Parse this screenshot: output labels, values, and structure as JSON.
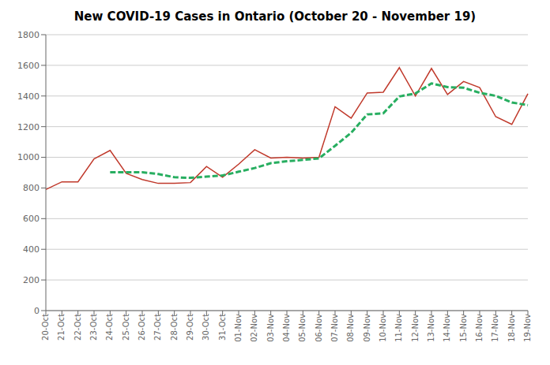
{
  "chart_data": {
    "type": "line",
    "title": "New COVID-19 Cases in Ontario (October 20 - November 19)",
    "categories": [
      "20-Oct",
      "21-Oct",
      "22-Oct",
      "23-Oct",
      "24-Oct",
      "25-Oct",
      "26-Oct",
      "27-Oct",
      "28-Oct",
      "29-Oct",
      "30-Oct",
      "31-Oct",
      "01-Nov",
      "02-Nov",
      "03-Nov",
      "04-Nov",
      "05-Nov",
      "06-Nov",
      "07-Nov",
      "08-Nov",
      "09-Nov",
      "10-Nov",
      "11-Nov",
      "12-Nov",
      "13-Nov",
      "14-Nov",
      "15-Nov",
      "16-Nov",
      "17-Nov",
      "18-Nov",
      "19-Nov"
    ],
    "series": [
      {
        "color": "#c0392b",
        "line_style": "solid",
        "values": [
          790,
          840,
          840,
          990,
          1045,
          895,
          855,
          830,
          830,
          835,
          940,
          870,
          955,
          1050,
          995,
          1000,
          995,
          1000,
          1330,
          1255,
          1420,
          1425,
          1585,
          1400,
          1580,
          1410,
          1495,
          1455,
          1265,
          1215,
          1415
        ]
      },
      {
        "color": "#27ae60",
        "line_style": "dashed",
        "values": [
          null,
          null,
          null,
          null,
          902,
          902,
          902,
          891,
          870,
          866,
          874,
          882,
          906,
          930,
          962,
          974,
          983,
          993,
          1075,
          1160,
          1280,
          1287,
          1397,
          1417,
          1482,
          1458,
          1454,
          1421,
          1401,
          1358,
          1340
        ]
      }
    ],
    "ylim": [
      0,
      1800
    ],
    "yticks": [
      0,
      200,
      400,
      600,
      800,
      1000,
      1200,
      1400,
      1600,
      1800
    ],
    "grid": true
  }
}
